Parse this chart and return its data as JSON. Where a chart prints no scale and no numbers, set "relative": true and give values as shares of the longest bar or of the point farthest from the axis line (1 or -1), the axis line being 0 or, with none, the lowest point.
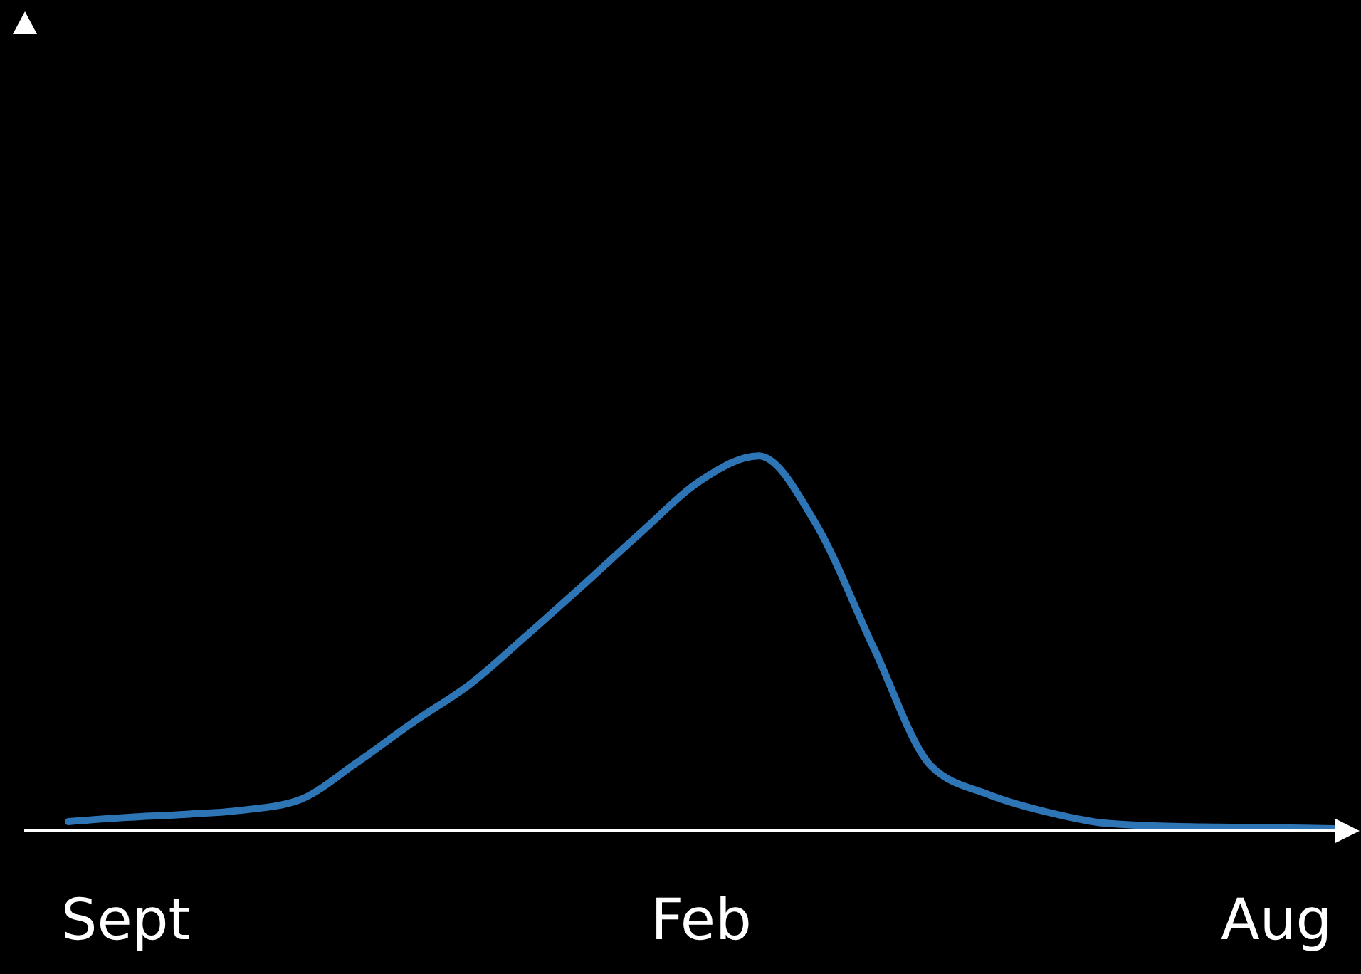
{
  "chart_data": {
    "type": "line",
    "relative": true,
    "categories": [
      null,
      "Sept",
      null,
      null,
      null,
      null,
      null,
      null,
      null,
      null,
      null,
      "Feb",
      null,
      null,
      null,
      null,
      null,
      null,
      null,
      null,
      null,
      "Aug",
      null
    ],
    "series": [
      {
        "color": "#2e75b6",
        "values": [
          0.023,
          0.034,
          0.042,
          0.053,
          0.08,
          0.179,
          0.289,
          0.392,
          0.525,
          0.662,
          0.802,
          0.935,
          1,
          0.817,
          0.487,
          0.171,
          0.095,
          0.049,
          0.019,
          0.011,
          0.008,
          0.006,
          0.004
        ]
      }
    ],
    "grid": false,
    "legend": false
  }
}
